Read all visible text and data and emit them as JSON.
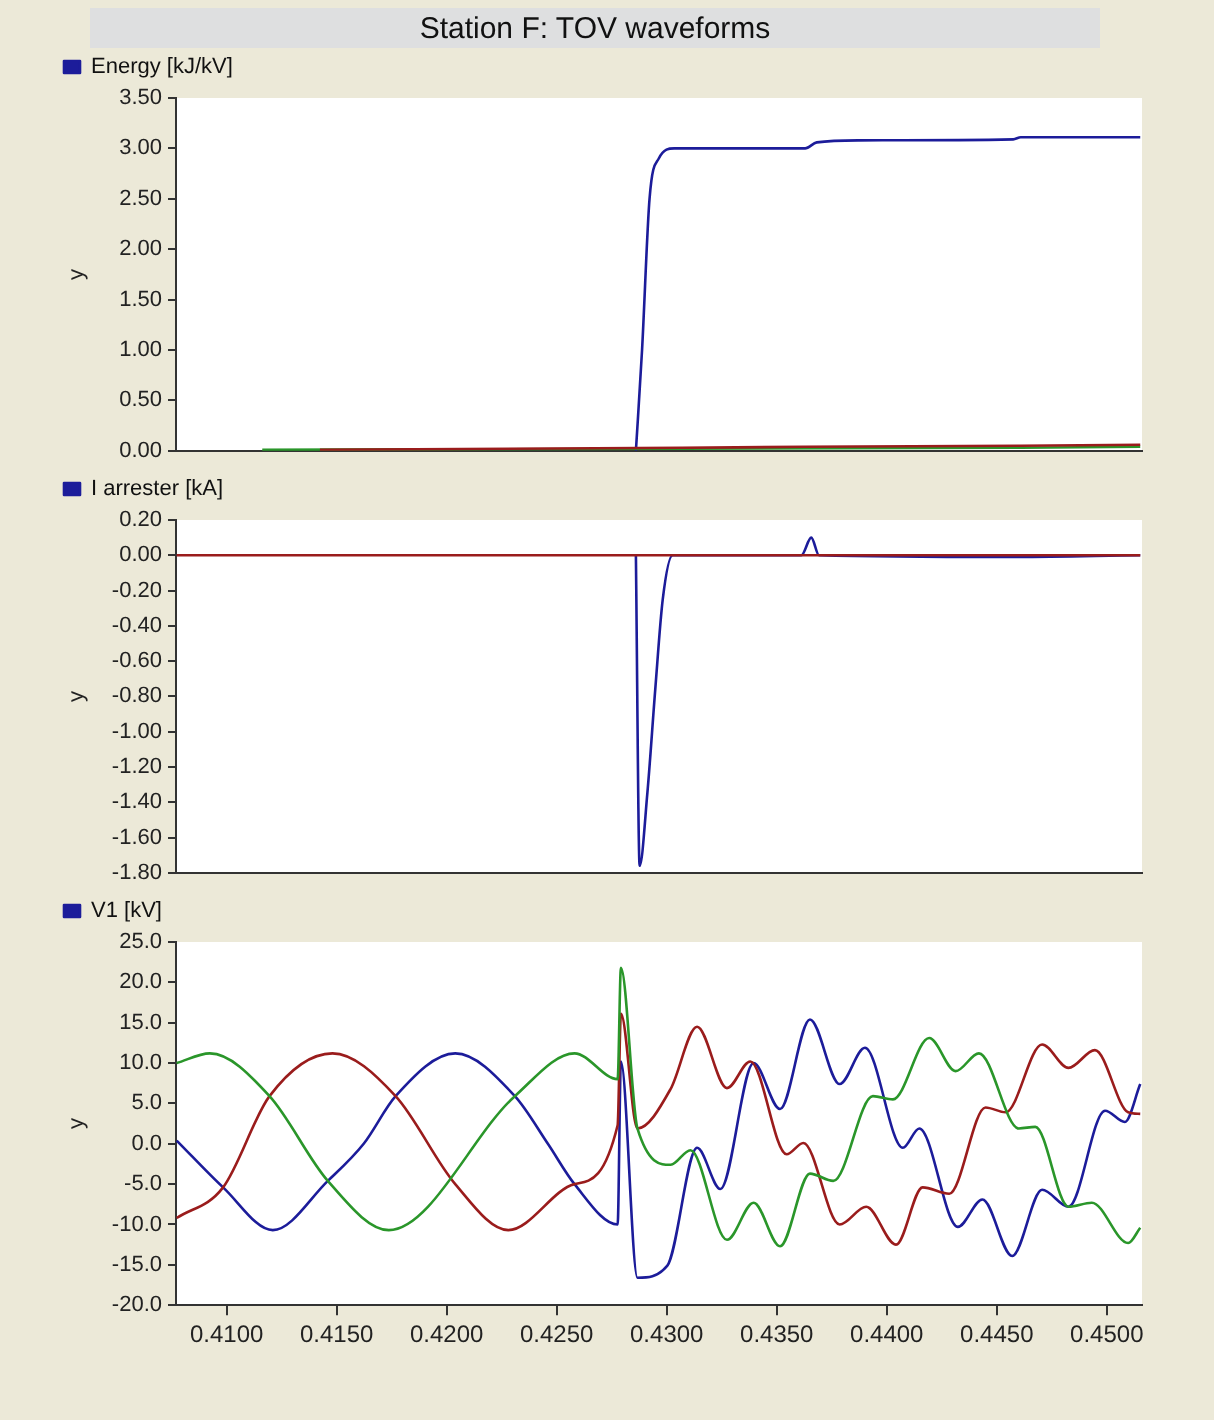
{
  "chart_data": [
    {
      "type": "line",
      "title": "Station F: TOV waveforms",
      "ylabel": "y",
      "xlim": [
        0.4077,
        0.4516
      ],
      "ylim": [
        0,
        3.5
      ],
      "yticks": [
        {
          "value": 0,
          "label": "0.00"
        },
        {
          "value": 0.5,
          "label": "0.50"
        },
        {
          "value": 1,
          "label": "1.00"
        },
        {
          "value": 1.5,
          "label": "1.50"
        },
        {
          "value": 2,
          "label": "2.00"
        },
        {
          "value": 2.5,
          "label": "2.50"
        },
        {
          "value": 3,
          "label": "3.00"
        },
        {
          "value": 3.5,
          "label": "3.50"
        }
      ],
      "tick_labels": "y",
      "grid": false,
      "legend": "top left",
      "marker": "none",
      "series": [
        {
          "name": "Energy [kJ/kV]",
          "color": "#1c1c9a",
          "x": [
            0.4286,
            0.42888,
            0.42922,
            0.42964,
            0.43034,
            0.43629,
            0.43682,
            0.43874,
            0.44575,
            0.44609,
            0.45152
          ],
          "values": [
            0,
            1.0,
            2.5,
            2.9,
            3.0,
            3.0,
            3.06,
            3.08,
            3.09,
            3.11,
            3.11
          ]
        },
        {
          "color": "#2a962a",
          "x": [
            0.41162,
            0.4307,
            0.44609,
            0.45152
          ],
          "values": [
            0.01,
            0.02,
            0.03,
            0.04
          ]
        },
        {
          "color": "#9a1c1c",
          "x": [
            0.41424,
            0.4307,
            0.43629,
            0.44609,
            0.45152
          ],
          "values": [
            0.01,
            0.03,
            0.04,
            0.05,
            0.06
          ]
        }
      ]
    },
    {
      "type": "line",
      "ylabel": "y",
      "xlim": [
        0.4077,
        0.4516
      ],
      "ylim": [
        -1.8,
        0.2
      ],
      "yticks": [
        {
          "value": -1.8,
          "label": "-1.80"
        },
        {
          "value": -1.6,
          "label": "-1.60"
        },
        {
          "value": -1.4,
          "label": "-1.40"
        },
        {
          "value": -1.2,
          "label": "-1.20"
        },
        {
          "value": -1,
          "label": "-1.00"
        },
        {
          "value": -0.8,
          "label": "-0.80"
        },
        {
          "value": -0.6,
          "label": "-0.60"
        },
        {
          "value": -0.4,
          "label": "-0.40"
        },
        {
          "value": -0.2,
          "label": "-0.20"
        },
        {
          "value": 0,
          "label": "0.00"
        },
        {
          "value": 0.2,
          "label": "0.20"
        }
      ],
      "tick_labels": "y",
      "grid": false,
      "legend": "top left",
      "marker": "none",
      "series": [
        {
          "name": "I arrester [kA]",
          "color": "#1c1c9a",
          "x": [
            0.4286,
            0.42877,
            0.42912,
            0.42948,
            0.42982,
            0.43027,
            0.43612,
            0.43657,
            0.43692,
            0.4454,
            0.45152
          ],
          "values": [
            0,
            -1.76,
            -1.35,
            -0.76,
            -0.25,
            0,
            0,
            0.1,
            0,
            -0.01,
            0
          ]
        },
        {
          "color": "#9a1c1c",
          "x": [
            0.40773,
            0.45152
          ],
          "values": [
            0,
            0
          ]
        }
      ]
    },
    {
      "type": "line",
      "ylabel": "y",
      "xlim": [
        0.4077,
        0.4516
      ],
      "ylim": [
        -20,
        25
      ],
      "xticks": [
        {
          "value": 0.41,
          "label": "0.4100"
        },
        {
          "value": 0.415,
          "label": "0.4150"
        },
        {
          "value": 0.42,
          "label": "0.4200"
        },
        {
          "value": 0.425,
          "label": "0.4250"
        },
        {
          "value": 0.43,
          "label": "0.4300"
        },
        {
          "value": 0.435,
          "label": "0.4350"
        },
        {
          "value": 0.44,
          "label": "0.4400"
        },
        {
          "value": 0.445,
          "label": "0.4450"
        },
        {
          "value": 0.45,
          "label": "0.4500"
        }
      ],
      "yticks": [
        {
          "value": -20,
          "label": "-20.0"
        },
        {
          "value": -15,
          "label": "-15.0"
        },
        {
          "value": -10,
          "label": "-10.0"
        },
        {
          "value": -5,
          "label": "-5.0"
        },
        {
          "value": 0,
          "label": "0.0"
        },
        {
          "value": 5,
          "label": "5.0"
        },
        {
          "value": 10,
          "label": "10.0"
        },
        {
          "value": 15,
          "label": "15.0"
        },
        {
          "value": 20,
          "label": "20.0"
        },
        {
          "value": 25,
          "label": "25.0"
        }
      ],
      "grid": false,
      "legend": "top left",
      "marker": "none",
      "series": [
        {
          "name": "V1 [kV]",
          "color": "#1c1c9a",
          "x": [
            0.40773,
            0.40984,
            0.4121,
            0.4146,
            0.41623,
            0.41768,
            0.42039,
            0.4231,
            0.4246,
            0.42581,
            0.42777,
            0.42792,
            0.42867,
            0.43003,
            0.43138,
            0.43244,
            0.43395,
            0.43515,
            0.43651,
            0.43786,
            0.43901,
            0.44073,
            0.44148,
            0.44323,
            0.44435,
            0.4457,
            0.44706,
            0.44826,
            0.44992,
            0.45082,
            0.45152
          ],
          "values": [
            0.4,
            -5.4,
            -10.7,
            -4.6,
            0,
            5.9,
            11.2,
            5.9,
            0,
            -5.0,
            -10.0,
            10.2,
            -16.6,
            -15.1,
            -0.5,
            -5.6,
            10.0,
            4.3,
            15.4,
            7.4,
            11.9,
            -0.5,
            1.9,
            -10.3,
            -6.9,
            -13.9,
            -5.7,
            -7.8,
            4.1,
            2.7,
            7.4
          ]
        },
        {
          "color": "#9a1c1c",
          "x": [
            0.40773,
            0.40984,
            0.41195,
            0.41481,
            0.41768,
            0.42039,
            0.4228,
            0.42581,
            0.42777,
            0.42792,
            0.42867,
            0.43018,
            0.43138,
            0.43274,
            0.4338,
            0.43545,
            0.43621,
            0.43786,
            0.43907,
            0.44042,
            0.44163,
            0.44284,
            0.44449,
            0.4454,
            0.44706,
            0.44826,
            0.44946,
            0.45097,
            0.45152
          ],
          "values": [
            -9.2,
            -5.4,
            5.9,
            11.2,
            5.9,
            -5.0,
            -10.7,
            -5.0,
            2.3,
            16.1,
            1.9,
            6.8,
            14.5,
            6.9,
            10.2,
            -1.3,
            0.1,
            -10.0,
            -7.8,
            -12.5,
            -5.4,
            -6.2,
            4.5,
            3.9,
            12.3,
            9.4,
            11.6,
            3.9,
            3.7
          ]
        },
        {
          "color": "#2a962a",
          "x": [
            0.40773,
            0.40924,
            0.41195,
            0.4146,
            0.41737,
            0.4231,
            0.42581,
            0.42777,
            0.42792,
            0.42867,
            0.43018,
            0.43108,
            0.43274,
            0.43395,
            0.43515,
            0.43651,
            0.43757,
            0.43937,
            0.44028,
            0.44193,
            0.44313,
            0.44419,
            0.446,
            0.44675,
            0.44826,
            0.44932,
            0.45097,
            0.45152
          ],
          "values": [
            10.0,
            11.2,
            5.9,
            -4.6,
            -10.7,
            5.9,
            11.2,
            8.0,
            21.8,
            1.9,
            -2.6,
            -0.8,
            -11.9,
            -7.3,
            -12.7,
            -3.7,
            -4.6,
            5.9,
            5.5,
            13.1,
            9.0,
            11.2,
            1.9,
            2.1,
            -7.8,
            -7.3,
            -12.3,
            -10.4
          ]
        }
      ]
    }
  ]
}
